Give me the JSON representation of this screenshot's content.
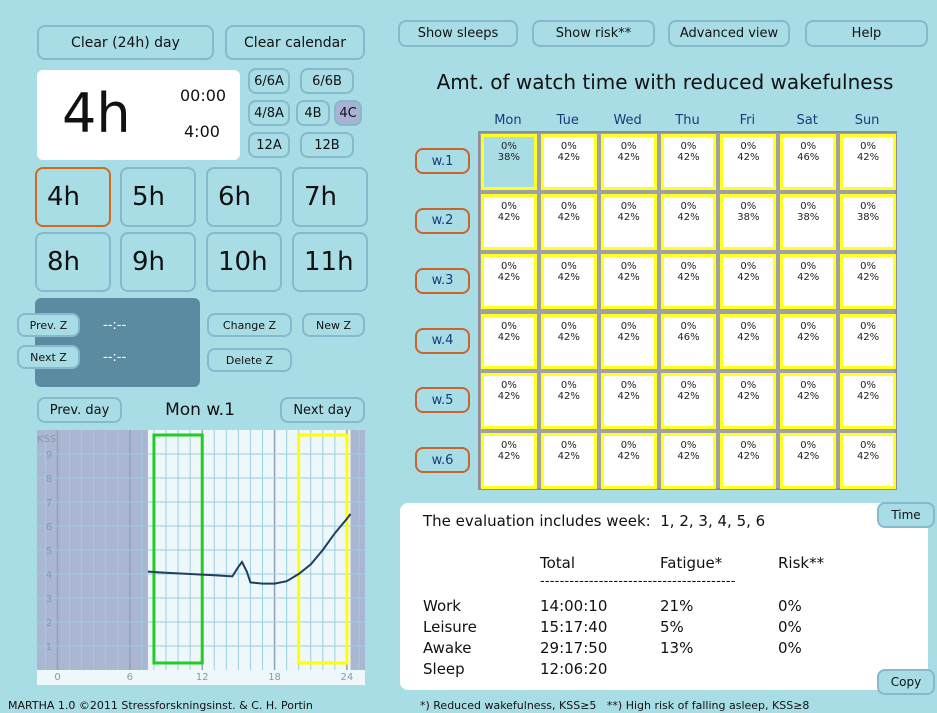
{
  "left_panel": {
    "clear_day": "Clear (24h) day",
    "clear_calendar": "Clear calendar",
    "display": {
      "duration": "4h",
      "start": "00:00",
      "end": "4:00"
    },
    "shift_buttons": [
      "6/6A",
      "6/6B",
      "4/8A",
      "4B",
      "4C",
      "12A",
      "12B"
    ],
    "selected_shift": 4,
    "hour_buttons": [
      "4h",
      "5h",
      "6h",
      "7h",
      "8h",
      "9h",
      "10h",
      "11h"
    ],
    "selected_hour": 0,
    "zone": {
      "prev": "Prev. Z",
      "prev_time": "--:--",
      "next": "Next Z",
      "next_time": "--:--",
      "change": "Change Z",
      "new": "New Z",
      "delete": "Delete Z"
    },
    "day_nav": {
      "prev": "Prev. day",
      "label": "Mon w.1",
      "next": "Next day"
    }
  },
  "kss_chart": {
    "type": "line",
    "y_label": "KSS",
    "xlim": [
      -1.7,
      25.5
    ],
    "ylim": [
      0,
      10
    ],
    "xticks": [
      0,
      6,
      12,
      18,
      24
    ],
    "yticks": [
      1,
      2,
      3,
      4,
      5,
      6,
      7,
      8,
      9
    ],
    "color": "#1f3f5f",
    "shaded": [
      [
        -1.7,
        7.5
      ],
      [
        24.3,
        25.5
      ]
    ],
    "watches": [
      {
        "start": 8,
        "end": 12,
        "color": "#22cc22"
      },
      {
        "start": 20,
        "end": 24,
        "color": "#ffff00"
      }
    ],
    "x": [
      7.5,
      9,
      11,
      13,
      14.5,
      15,
      15.3,
      15.7,
      16,
      17,
      18,
      19,
      20,
      21,
      22,
      23,
      24,
      24.3
    ],
    "values": [
      4.1,
      4.05,
      4.0,
      3.95,
      3.9,
      4.3,
      4.5,
      4.1,
      3.65,
      3.6,
      3.6,
      3.7,
      4.0,
      4.4,
      5.0,
      5.7,
      6.3,
      6.5
    ]
  },
  "toolbar": [
    "Show sleeps",
    "Show risk**",
    "Advanced view",
    "Help"
  ],
  "calendar": {
    "title": "Amt. of watch time with reduced wakefulness",
    "days": [
      "Mon",
      "Tue",
      "Wed",
      "Thu",
      "Fri",
      "Sat",
      "Sun"
    ],
    "weeks": [
      "w.1",
      "w.2",
      "w.3",
      "w.4",
      "w.5",
      "w.6"
    ],
    "selected_cell": {
      "week": 0,
      "day": 0
    },
    "rows": [
      [
        [
          "0%",
          "38%"
        ],
        [
          "0%",
          "42%"
        ],
        [
          "0%",
          "42%"
        ],
        [
          "0%",
          "42%"
        ],
        [
          "0%",
          "42%"
        ],
        [
          "0%",
          "46%"
        ],
        [
          "0%",
          "42%"
        ]
      ],
      [
        [
          "0%",
          "42%"
        ],
        [
          "0%",
          "42%"
        ],
        [
          "0%",
          "42%"
        ],
        [
          "0%",
          "42%"
        ],
        [
          "0%",
          "38%"
        ],
        [
          "0%",
          "38%"
        ],
        [
          "0%",
          "38%"
        ]
      ],
      [
        [
          "0%",
          "42%"
        ],
        [
          "0%",
          "42%"
        ],
        [
          "0%",
          "42%"
        ],
        [
          "0%",
          "42%"
        ],
        [
          "0%",
          "42%"
        ],
        [
          "0%",
          "42%"
        ],
        [
          "0%",
          "42%"
        ]
      ],
      [
        [
          "0%",
          "42%"
        ],
        [
          "0%",
          "42%"
        ],
        [
          "0%",
          "42%"
        ],
        [
          "0%",
          "46%"
        ],
        [
          "0%",
          "42%"
        ],
        [
          "0%",
          "42%"
        ],
        [
          "0%",
          "42%"
        ]
      ],
      [
        [
          "0%",
          "42%"
        ],
        [
          "0%",
          "42%"
        ],
        [
          "0%",
          "42%"
        ],
        [
          "0%",
          "42%"
        ],
        [
          "0%",
          "42%"
        ],
        [
          "0%",
          "42%"
        ],
        [
          "0%",
          "42%"
        ]
      ],
      [
        [
          "0%",
          "42%"
        ],
        [
          "0%",
          "42%"
        ],
        [
          "0%",
          "42%"
        ],
        [
          "0%",
          "42%"
        ],
        [
          "0%",
          "42%"
        ],
        [
          "0%",
          "42%"
        ],
        [
          "0%",
          "42%"
        ]
      ]
    ]
  },
  "summary": {
    "text": "The evaluation includes week:  1, 2, 3, 4, 5, 6",
    "headers": [
      "Total",
      "Fatigue*",
      "Risk**"
    ],
    "divider": "----------------------------------------",
    "rows": [
      [
        "Work",
        "14:00:10",
        "21%",
        "0%"
      ],
      [
        "Leisure",
        "15:17:40",
        "5%",
        "0%"
      ],
      [
        "Awake",
        "29:17:50",
        "13%",
        "0%"
      ],
      [
        "Sleep",
        "12:06:20"
      ]
    ],
    "time_button": "Time",
    "copy_button": "Copy"
  },
  "footer": {
    "left": "MARTHA 1.0 ©2011 Stressforskningsinst. & C. H. Portin",
    "right": "*) Reduced wakefulness, KSS≥5   **) High risk of falling asleep, KSS≥8"
  }
}
